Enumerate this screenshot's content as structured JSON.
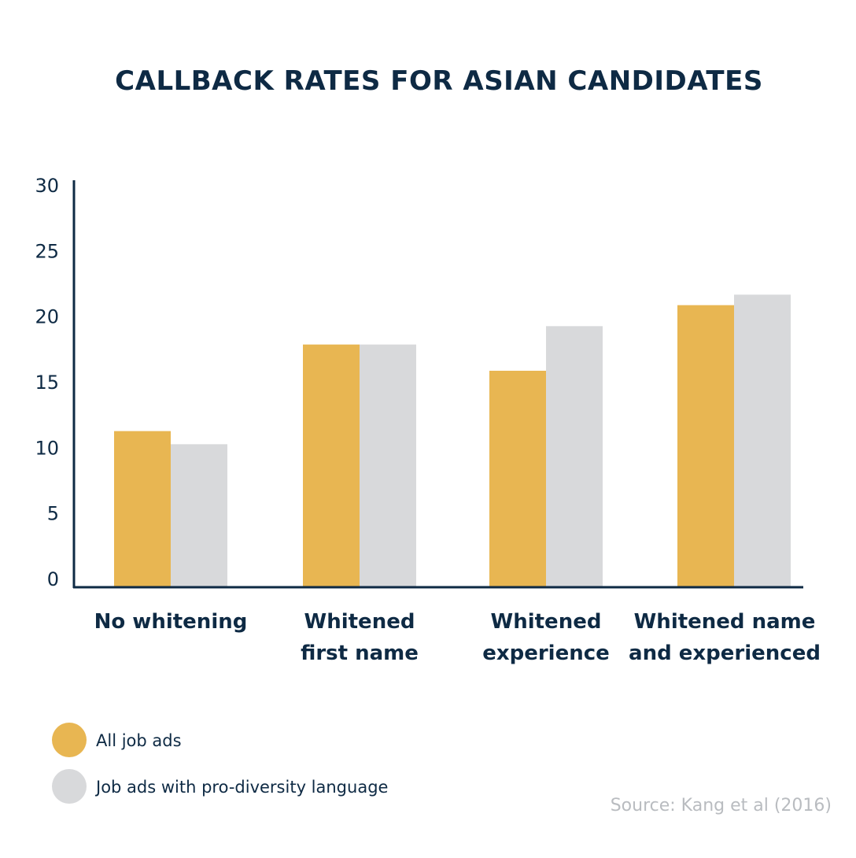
{
  "chart_data": {
    "type": "bar",
    "title": "CALLBACK RATES FOR ASIAN CANDIDATES",
    "categories": [
      [
        "No whitening"
      ],
      [
        "Whitened",
        "first name"
      ],
      [
        "Whitened",
        "experience"
      ],
      [
        "Whitened name",
        "and experienced"
      ]
    ],
    "series": [
      {
        "name": "All job ads",
        "color": "#e8b652",
        "values": [
          11.9,
          18.5,
          16.5,
          21.5
        ]
      },
      {
        "name": "Job ads with pro-diversity language",
        "color": "#d8d9db",
        "values": [
          10.9,
          18.5,
          19.9,
          22.3
        ]
      }
    ],
    "yticks": [
      0,
      5,
      10,
      15,
      20,
      25,
      30
    ],
    "ylim": [
      0,
      30
    ],
    "grid": false,
    "legend_position": "bottom-left",
    "source": "Source: Kang et al (2016)"
  }
}
